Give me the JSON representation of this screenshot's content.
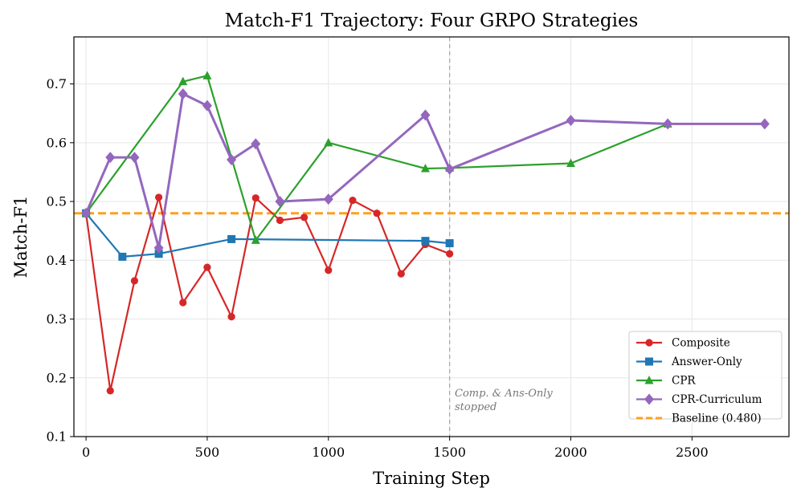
{
  "chart_data": {
    "type": "line",
    "title": "Match-F1 Trajectory: Four GRPO Strategies",
    "xlabel": "Training Step",
    "ylabel": "Match-F1",
    "xlim": [
      -50,
      2900
    ],
    "ylim": [
      0.1,
      0.78
    ],
    "xticks": [
      0,
      500,
      1000,
      1500,
      2000,
      2500
    ],
    "yticks": [
      0.1,
      0.2,
      0.3,
      0.4,
      0.5,
      0.6,
      0.7
    ],
    "grid": true,
    "legend_position": "bottom-right",
    "series": [
      {
        "name": "Composite",
        "color": "#d62728",
        "marker": "circle",
        "x": [
          0,
          100,
          200,
          300,
          400,
          500,
          600,
          700,
          800,
          900,
          1000,
          1100,
          1200,
          1300,
          1400,
          1500
        ],
        "y": [
          0.48,
          0.178,
          0.365,
          0.507,
          0.328,
          0.388,
          0.304,
          0.506,
          0.468,
          0.473,
          0.383,
          0.502,
          0.48,
          0.377,
          0.427,
          0.411
        ]
      },
      {
        "name": "Answer-Only",
        "color": "#1f77b4",
        "marker": "square",
        "x": [
          0,
          150,
          300,
          600,
          1400,
          1500
        ],
        "y": [
          0.48,
          0.406,
          0.411,
          0.436,
          0.433,
          0.429
        ]
      },
      {
        "name": "CPR",
        "color": "#2ca02c",
        "marker": "triangle",
        "x": [
          0,
          400,
          500,
          700,
          1000,
          1400,
          1500,
          2000,
          2400
        ],
        "y": [
          0.48,
          0.704,
          0.714,
          0.434,
          0.6,
          0.556,
          0.557,
          0.565,
          0.632
        ]
      },
      {
        "name": "CPR-Curriculum",
        "color": "#9467bd",
        "marker": "diamond",
        "x": [
          0,
          100,
          200,
          300,
          400,
          500,
          600,
          700,
          800,
          1000,
          1400,
          1500,
          2000,
          2400,
          2800
        ],
        "y": [
          0.48,
          0.575,
          0.575,
          0.421,
          0.683,
          0.663,
          0.571,
          0.598,
          0.5,
          0.504,
          0.647,
          0.555,
          0.638,
          0.632,
          0.632
        ]
      }
    ],
    "baseline": {
      "name": "Baseline (0.480)",
      "value": 0.48,
      "color": "#ff9f1c",
      "style": "dashed"
    },
    "vline": {
      "x": 1500,
      "color": "#aaaaaa",
      "style": "dashed"
    },
    "annotation": {
      "lines": [
        "Comp. & Ans-Only",
        "stopped"
      ],
      "x": 1500,
      "y": 0.15
    }
  }
}
